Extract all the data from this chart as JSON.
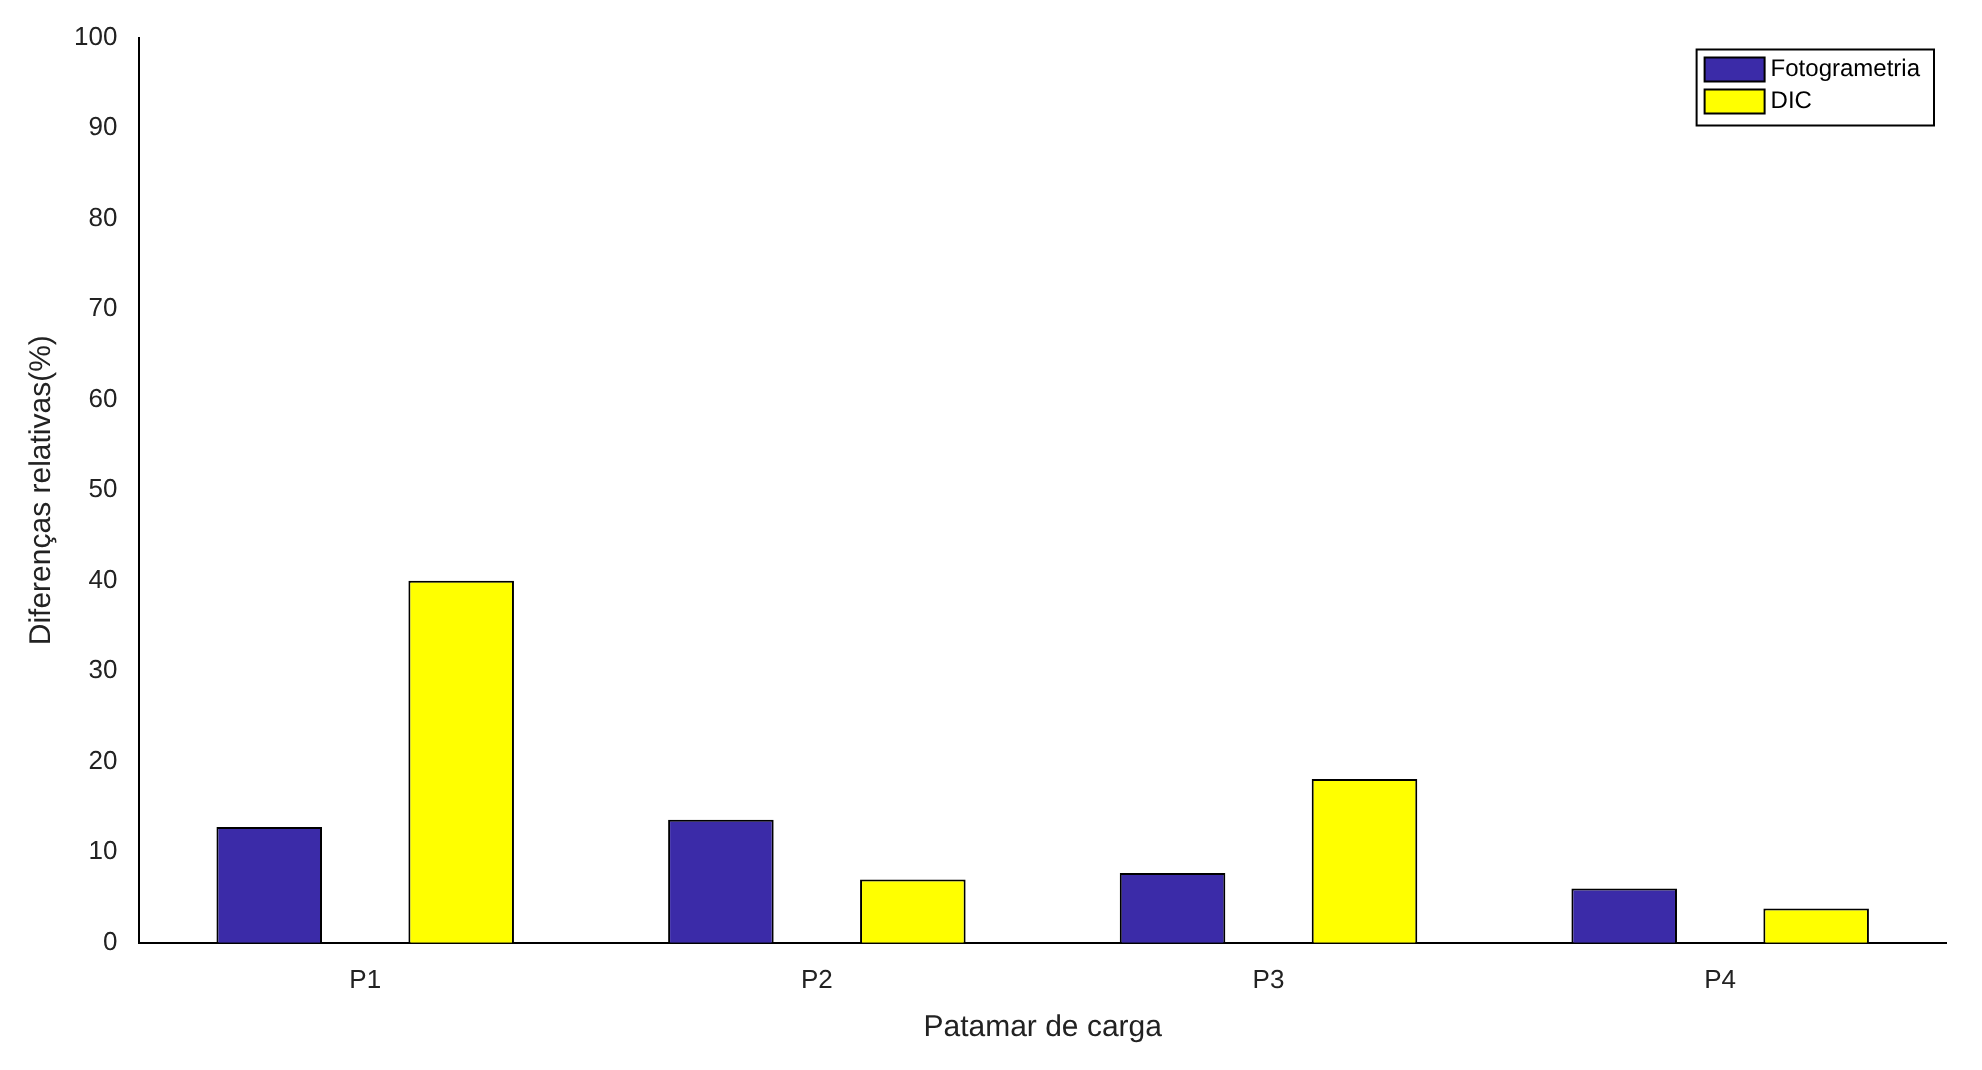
{
  "chart_data": {
    "type": "bar",
    "xlabel": "Patamar de carga",
    "ylabel": "Diferenças relativas(%)",
    "categories": [
      "P1",
      "P2",
      "P3",
      "P4"
    ],
    "series": [
      {
        "name": "Fotogrametria",
        "color": "#3b2ba8",
        "values": [
          12.8,
          13.6,
          7.7,
          6.0
        ]
      },
      {
        "name": "DIC",
        "color": "#ffff00",
        "values": [
          40.0,
          7.0,
          18.1,
          3.8
        ]
      }
    ],
    "ylim": [
      0,
      100
    ],
    "yticks": [
      0,
      10,
      20,
      30,
      40,
      50,
      60,
      70,
      80,
      90,
      100
    ],
    "grid": false,
    "legend": "top right"
  }
}
